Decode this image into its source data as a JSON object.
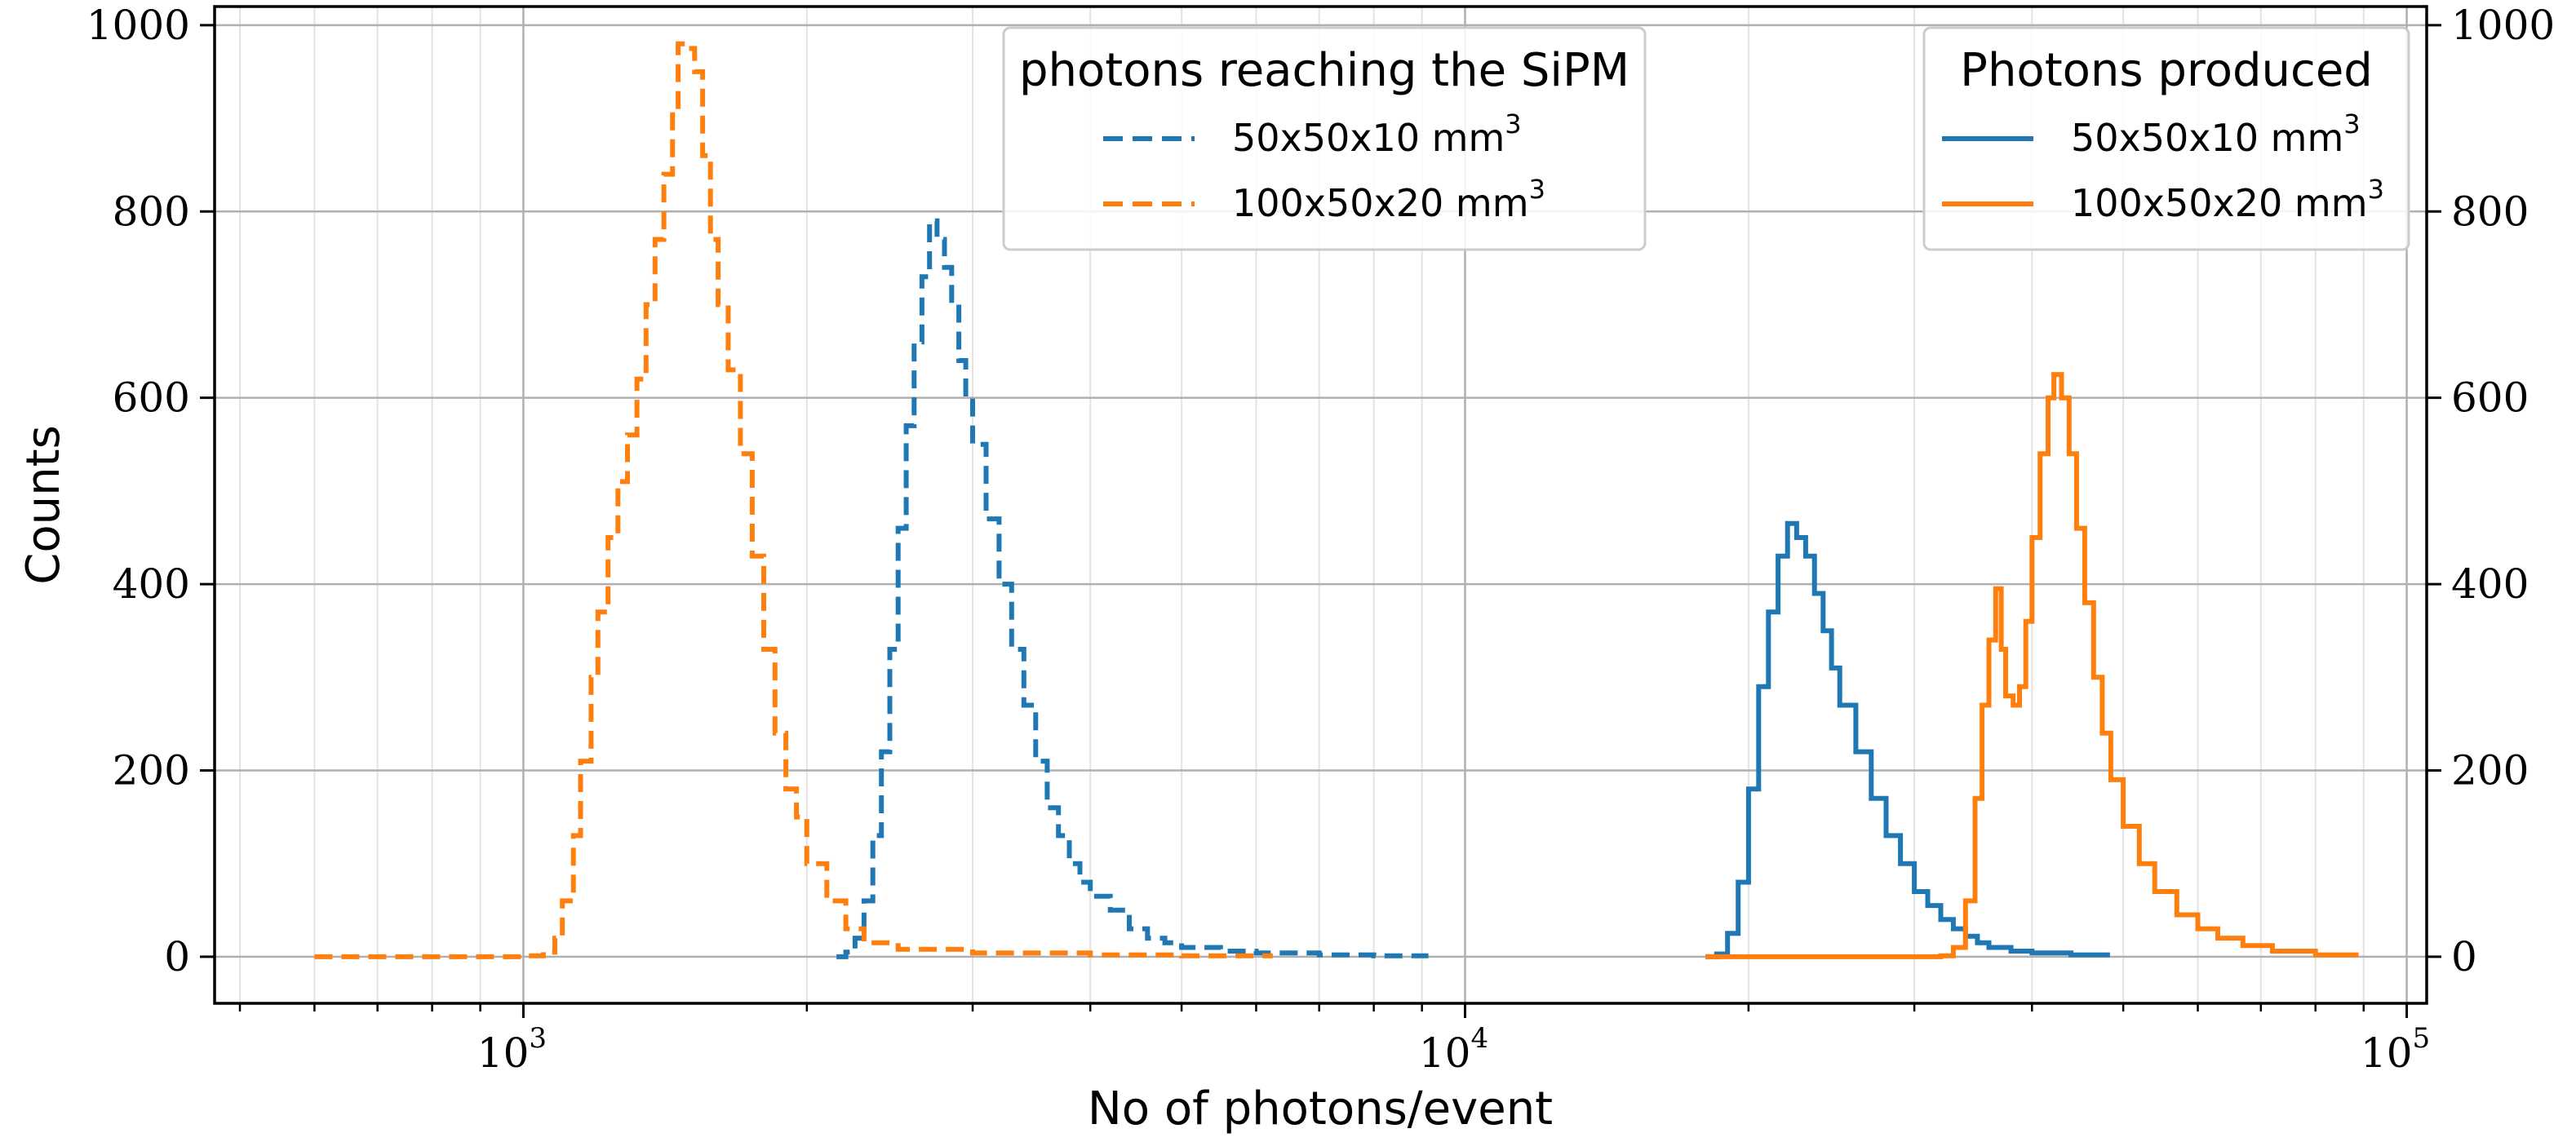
{
  "chart_data": {
    "type": "line",
    "xlabel": "No of photons/event",
    "ylabel": "Counts",
    "xscale": "log",
    "xlim": [
      470,
      105000
    ],
    "ylim": [
      -50,
      1020
    ],
    "grid": true,
    "x_tick_values": [
      1000,
      10000,
      100000
    ],
    "x_tick_labels": [
      {
        "base": "10",
        "exp": "3"
      },
      {
        "base": "10",
        "exp": "4"
      },
      {
        "base": "10",
        "exp": "5"
      }
    ],
    "y_ticks": [
      0,
      200,
      400,
      600,
      800,
      1000
    ],
    "y_tick_labels": [
      "0",
      "200",
      "400",
      "600",
      "800",
      "1000"
    ],
    "colors": {
      "blue": "#1f77b4",
      "orange": "#ff7f0e"
    },
    "legends": [
      {
        "title": "photons reaching the SiPM",
        "placement": "top-center",
        "entries": [
          {
            "text": "50x50x10 mm",
            "sup": "3",
            "color": "#1f77b4",
            "style": "dashed"
          },
          {
            "text": "100x50x20 mm",
            "sup": "3",
            "color": "#ff7f0e",
            "style": "dashed"
          }
        ]
      },
      {
        "title": "Photons produced",
        "placement": "top-right",
        "entries": [
          {
            "text": "50x50x10 mm",
            "sup": "3",
            "color": "#1f77b4",
            "style": "solid"
          },
          {
            "text": "100x50x20 mm",
            "sup": "3",
            "color": "#ff7f0e",
            "style": "solid"
          }
        ]
      }
    ],
    "series": [
      {
        "group": "photons reaching the SiPM",
        "label": "50x50x10 mm3",
        "color": "#1f77b4",
        "style": "dashed",
        "points": [
          [
            2150,
            0
          ],
          [
            2200,
            5
          ],
          [
            2250,
            20
          ],
          [
            2300,
            60
          ],
          [
            2350,
            130
          ],
          [
            2400,
            220
          ],
          [
            2450,
            330
          ],
          [
            2500,
            460
          ],
          [
            2550,
            570
          ],
          [
            2600,
            660
          ],
          [
            2650,
            730
          ],
          [
            2700,
            790
          ],
          [
            2750,
            770
          ],
          [
            2800,
            740
          ],
          [
            2850,
            700
          ],
          [
            2900,
            640
          ],
          [
            2950,
            600
          ],
          [
            3000,
            550
          ],
          [
            3100,
            470
          ],
          [
            3200,
            400
          ],
          [
            3300,
            330
          ],
          [
            3400,
            270
          ],
          [
            3500,
            210
          ],
          [
            3600,
            160
          ],
          [
            3700,
            130
          ],
          [
            3800,
            100
          ],
          [
            3900,
            80
          ],
          [
            4000,
            65
          ],
          [
            4200,
            50
          ],
          [
            4400,
            30
          ],
          [
            4600,
            20
          ],
          [
            4800,
            15
          ],
          [
            5000,
            10
          ],
          [
            5500,
            6
          ],
          [
            6000,
            4
          ],
          [
            7000,
            2
          ],
          [
            8000,
            1
          ]
        ]
      },
      {
        "group": "photons reaching the SiPM",
        "label": "100x50x20 mm3",
        "color": "#ff7f0e",
        "style": "dashed",
        "points": [
          [
            600,
            0
          ],
          [
            700,
            0
          ],
          [
            800,
            0
          ],
          [
            900,
            0
          ],
          [
            1000,
            1
          ],
          [
            1050,
            5
          ],
          [
            1080,
            20
          ],
          [
            1100,
            60
          ],
          [
            1130,
            130
          ],
          [
            1150,
            210
          ],
          [
            1180,
            300
          ],
          [
            1200,
            370
          ],
          [
            1230,
            450
          ],
          [
            1260,
            510
          ],
          [
            1290,
            560
          ],
          [
            1320,
            620
          ],
          [
            1350,
            700
          ],
          [
            1380,
            770
          ],
          [
            1410,
            840
          ],
          [
            1440,
            910
          ],
          [
            1460,
            980
          ],
          [
            1490,
            975
          ],
          [
            1520,
            950
          ],
          [
            1550,
            860
          ],
          [
            1580,
            770
          ],
          [
            1610,
            700
          ],
          [
            1650,
            630
          ],
          [
            1700,
            540
          ],
          [
            1750,
            430
          ],
          [
            1800,
            330
          ],
          [
            1850,
            240
          ],
          [
            1900,
            180
          ],
          [
            1950,
            150
          ],
          [
            2000,
            100
          ],
          [
            2100,
            60
          ],
          [
            2200,
            30
          ],
          [
            2300,
            15
          ],
          [
            2500,
            8
          ],
          [
            3000,
            4
          ],
          [
            4000,
            2
          ],
          [
            5000,
            1
          ]
        ]
      },
      {
        "group": "Photons produced",
        "label": "50x50x10 mm3",
        "color": "#1f77b4",
        "style": "solid",
        "points": [
          [
            18000,
            0
          ],
          [
            18500,
            3
          ],
          [
            19000,
            25
          ],
          [
            19500,
            80
          ],
          [
            20000,
            180
          ],
          [
            20500,
            290
          ],
          [
            21000,
            370
          ],
          [
            21500,
            430
          ],
          [
            22000,
            465
          ],
          [
            22500,
            450
          ],
          [
            23000,
            430
          ],
          [
            23500,
            390
          ],
          [
            24000,
            350
          ],
          [
            24500,
            310
          ],
          [
            25000,
            270
          ],
          [
            26000,
            220
          ],
          [
            27000,
            170
          ],
          [
            28000,
            130
          ],
          [
            29000,
            100
          ],
          [
            30000,
            70
          ],
          [
            31000,
            55
          ],
          [
            32000,
            40
          ],
          [
            33000,
            30
          ],
          [
            34000,
            22
          ],
          [
            35000,
            15
          ],
          [
            36000,
            10
          ],
          [
            38000,
            6
          ],
          [
            40000,
            4
          ],
          [
            44000,
            2
          ]
        ]
      },
      {
        "group": "Photons produced",
        "label": "100x50x20 mm3",
        "color": "#ff7f0e",
        "style": "solid",
        "points": [
          [
            18000,
            0
          ],
          [
            20000,
            0
          ],
          [
            25000,
            0
          ],
          [
            30000,
            0
          ],
          [
            32000,
            1
          ],
          [
            33000,
            10
          ],
          [
            34000,
            60
          ],
          [
            34800,
            170
          ],
          [
            35400,
            270
          ],
          [
            36000,
            340
          ],
          [
            36600,
            395
          ],
          [
            37100,
            330
          ],
          [
            37500,
            280
          ],
          [
            38200,
            270
          ],
          [
            38800,
            290
          ],
          [
            39400,
            360
          ],
          [
            40000,
            450
          ],
          [
            40800,
            540
          ],
          [
            41600,
            600
          ],
          [
            42200,
            625
          ],
          [
            43000,
            600
          ],
          [
            43800,
            540
          ],
          [
            44600,
            460
          ],
          [
            45500,
            380
          ],
          [
            46500,
            300
          ],
          [
            47500,
            240
          ],
          [
            48500,
            190
          ],
          [
            50000,
            140
          ],
          [
            52000,
            100
          ],
          [
            54000,
            70
          ],
          [
            57000,
            45
          ],
          [
            60000,
            30
          ],
          [
            63000,
            20
          ],
          [
            67000,
            12
          ],
          [
            72000,
            6
          ],
          [
            80000,
            2
          ]
        ]
      }
    ]
  }
}
